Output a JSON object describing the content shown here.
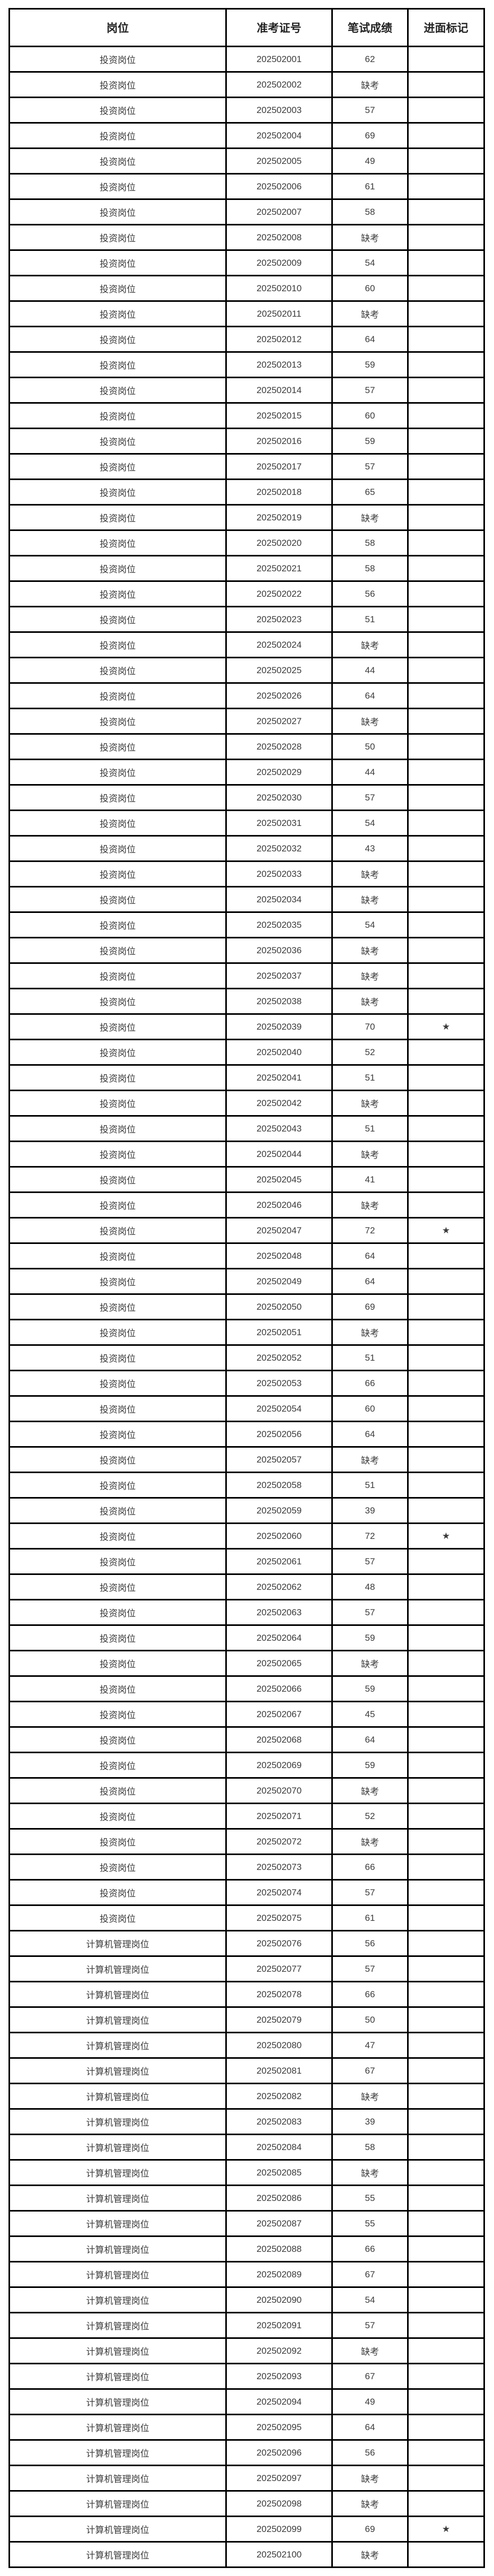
{
  "table": {
    "headers": {
      "post": "岗位",
      "exam_id": "准考证号",
      "written_score": "笔试成绩",
      "interview_mark": "进面标记"
    },
    "absent_label": "缺考",
    "star_symbol": "★",
    "post_labels": {
      "investment": "投资岗位",
      "computer_management": "计算机管理岗位"
    },
    "rows": [
      {
        "post": "投资岗位",
        "id": "202502001",
        "score": "62",
        "mark": ""
      },
      {
        "post": "投资岗位",
        "id": "202502002",
        "score": "缺考",
        "mark": ""
      },
      {
        "post": "投资岗位",
        "id": "202502003",
        "score": "57",
        "mark": ""
      },
      {
        "post": "投资岗位",
        "id": "202502004",
        "score": "69",
        "mark": ""
      },
      {
        "post": "投资岗位",
        "id": "202502005",
        "score": "49",
        "mark": ""
      },
      {
        "post": "投资岗位",
        "id": "202502006",
        "score": "61",
        "mark": ""
      },
      {
        "post": "投资岗位",
        "id": "202502007",
        "score": "58",
        "mark": ""
      },
      {
        "post": "投资岗位",
        "id": "202502008",
        "score": "缺考",
        "mark": ""
      },
      {
        "post": "投资岗位",
        "id": "202502009",
        "score": "54",
        "mark": ""
      },
      {
        "post": "投资岗位",
        "id": "202502010",
        "score": "60",
        "mark": ""
      },
      {
        "post": "投资岗位",
        "id": "202502011",
        "score": "缺考",
        "mark": ""
      },
      {
        "post": "投资岗位",
        "id": "202502012",
        "score": "64",
        "mark": ""
      },
      {
        "post": "投资岗位",
        "id": "202502013",
        "score": "59",
        "mark": ""
      },
      {
        "post": "投资岗位",
        "id": "202502014",
        "score": "57",
        "mark": ""
      },
      {
        "post": "投资岗位",
        "id": "202502015",
        "score": "60",
        "mark": ""
      },
      {
        "post": "投资岗位",
        "id": "202502016",
        "score": "59",
        "mark": ""
      },
      {
        "post": "投资岗位",
        "id": "202502017",
        "score": "57",
        "mark": ""
      },
      {
        "post": "投资岗位",
        "id": "202502018",
        "score": "65",
        "mark": ""
      },
      {
        "post": "投资岗位",
        "id": "202502019",
        "score": "缺考",
        "mark": ""
      },
      {
        "post": "投资岗位",
        "id": "202502020",
        "score": "58",
        "mark": ""
      },
      {
        "post": "投资岗位",
        "id": "202502021",
        "score": "58",
        "mark": ""
      },
      {
        "post": "投资岗位",
        "id": "202502022",
        "score": "56",
        "mark": ""
      },
      {
        "post": "投资岗位",
        "id": "202502023",
        "score": "51",
        "mark": ""
      },
      {
        "post": "投资岗位",
        "id": "202502024",
        "score": "缺考",
        "mark": ""
      },
      {
        "post": "投资岗位",
        "id": "202502025",
        "score": "44",
        "mark": ""
      },
      {
        "post": "投资岗位",
        "id": "202502026",
        "score": "64",
        "mark": ""
      },
      {
        "post": "投资岗位",
        "id": "202502027",
        "score": "缺考",
        "mark": ""
      },
      {
        "post": "投资岗位",
        "id": "202502028",
        "score": "50",
        "mark": ""
      },
      {
        "post": "投资岗位",
        "id": "202502029",
        "score": "44",
        "mark": ""
      },
      {
        "post": "投资岗位",
        "id": "202502030",
        "score": "57",
        "mark": ""
      },
      {
        "post": "投资岗位",
        "id": "202502031",
        "score": "54",
        "mark": ""
      },
      {
        "post": "投资岗位",
        "id": "202502032",
        "score": "43",
        "mark": ""
      },
      {
        "post": "投资岗位",
        "id": "202502033",
        "score": "缺考",
        "mark": ""
      },
      {
        "post": "投资岗位",
        "id": "202502034",
        "score": "缺考",
        "mark": ""
      },
      {
        "post": "投资岗位",
        "id": "202502035",
        "score": "54",
        "mark": ""
      },
      {
        "post": "投资岗位",
        "id": "202502036",
        "score": "缺考",
        "mark": ""
      },
      {
        "post": "投资岗位",
        "id": "202502037",
        "score": "缺考",
        "mark": ""
      },
      {
        "post": "投资岗位",
        "id": "202502038",
        "score": "缺考",
        "mark": ""
      },
      {
        "post": "投资岗位",
        "id": "202502039",
        "score": "70",
        "mark": "★"
      },
      {
        "post": "投资岗位",
        "id": "202502040",
        "score": "52",
        "mark": ""
      },
      {
        "post": "投资岗位",
        "id": "202502041",
        "score": "51",
        "mark": ""
      },
      {
        "post": "投资岗位",
        "id": "202502042",
        "score": "缺考",
        "mark": ""
      },
      {
        "post": "投资岗位",
        "id": "202502043",
        "score": "51",
        "mark": ""
      },
      {
        "post": "投资岗位",
        "id": "202502044",
        "score": "缺考",
        "mark": ""
      },
      {
        "post": "投资岗位",
        "id": "202502045",
        "score": "41",
        "mark": ""
      },
      {
        "post": "投资岗位",
        "id": "202502046",
        "score": "缺考",
        "mark": ""
      },
      {
        "post": "投资岗位",
        "id": "202502047",
        "score": "72",
        "mark": "★"
      },
      {
        "post": "投资岗位",
        "id": "202502048",
        "score": "64",
        "mark": ""
      },
      {
        "post": "投资岗位",
        "id": "202502049",
        "score": "64",
        "mark": ""
      },
      {
        "post": "投资岗位",
        "id": "202502050",
        "score": "69",
        "mark": ""
      },
      {
        "post": "投资岗位",
        "id": "202502051",
        "score": "缺考",
        "mark": ""
      },
      {
        "post": "投资岗位",
        "id": "202502052",
        "score": "51",
        "mark": ""
      },
      {
        "post": "投资岗位",
        "id": "202502053",
        "score": "66",
        "mark": ""
      },
      {
        "post": "投资岗位",
        "id": "202502054",
        "score": "60",
        "mark": ""
      },
      {
        "post": "投资岗位",
        "id": "202502056",
        "score": "64",
        "mark": ""
      },
      {
        "post": "投资岗位",
        "id": "202502057",
        "score": "缺考",
        "mark": ""
      },
      {
        "post": "投资岗位",
        "id": "202502058",
        "score": "51",
        "mark": ""
      },
      {
        "post": "投资岗位",
        "id": "202502059",
        "score": "39",
        "mark": ""
      },
      {
        "post": "投资岗位",
        "id": "202502060",
        "score": "72",
        "mark": "★"
      },
      {
        "post": "投资岗位",
        "id": "202502061",
        "score": "57",
        "mark": ""
      },
      {
        "post": "投资岗位",
        "id": "202502062",
        "score": "48",
        "mark": ""
      },
      {
        "post": "投资岗位",
        "id": "202502063",
        "score": "57",
        "mark": ""
      },
      {
        "post": "投资岗位",
        "id": "202502064",
        "score": "59",
        "mark": ""
      },
      {
        "post": "投资岗位",
        "id": "202502065",
        "score": "缺考",
        "mark": ""
      },
      {
        "post": "投资岗位",
        "id": "202502066",
        "score": "59",
        "mark": ""
      },
      {
        "post": "投资岗位",
        "id": "202502067",
        "score": "45",
        "mark": ""
      },
      {
        "post": "投资岗位",
        "id": "202502068",
        "score": "64",
        "mark": ""
      },
      {
        "post": "投资岗位",
        "id": "202502069",
        "score": "59",
        "mark": ""
      },
      {
        "post": "投资岗位",
        "id": "202502070",
        "score": "缺考",
        "mark": ""
      },
      {
        "post": "投资岗位",
        "id": "202502071",
        "score": "52",
        "mark": ""
      },
      {
        "post": "投资岗位",
        "id": "202502072",
        "score": "缺考",
        "mark": ""
      },
      {
        "post": "投资岗位",
        "id": "202502073",
        "score": "66",
        "mark": ""
      },
      {
        "post": "投资岗位",
        "id": "202502074",
        "score": "57",
        "mark": ""
      },
      {
        "post": "投资岗位",
        "id": "202502075",
        "score": "61",
        "mark": ""
      },
      {
        "post": "计算机管理岗位",
        "id": "202502076",
        "score": "56",
        "mark": ""
      },
      {
        "post": "计算机管理岗位",
        "id": "202502077",
        "score": "57",
        "mark": ""
      },
      {
        "post": "计算机管理岗位",
        "id": "202502078",
        "score": "66",
        "mark": ""
      },
      {
        "post": "计算机管理岗位",
        "id": "202502079",
        "score": "50",
        "mark": ""
      },
      {
        "post": "计算机管理岗位",
        "id": "202502080",
        "score": "47",
        "mark": ""
      },
      {
        "post": "计算机管理岗位",
        "id": "202502081",
        "score": "67",
        "mark": ""
      },
      {
        "post": "计算机管理岗位",
        "id": "202502082",
        "score": "缺考",
        "mark": ""
      },
      {
        "post": "计算机管理岗位",
        "id": "202502083",
        "score": "39",
        "mark": ""
      },
      {
        "post": "计算机管理岗位",
        "id": "202502084",
        "score": "58",
        "mark": ""
      },
      {
        "post": "计算机管理岗位",
        "id": "202502085",
        "score": "缺考",
        "mark": ""
      },
      {
        "post": "计算机管理岗位",
        "id": "202502086",
        "score": "55",
        "mark": ""
      },
      {
        "post": "计算机管理岗位",
        "id": "202502087",
        "score": "55",
        "mark": ""
      },
      {
        "post": "计算机管理岗位",
        "id": "202502088",
        "score": "66",
        "mark": ""
      },
      {
        "post": "计算机管理岗位",
        "id": "202502089",
        "score": "67",
        "mark": ""
      },
      {
        "post": "计算机管理岗位",
        "id": "202502090",
        "score": "54",
        "mark": ""
      },
      {
        "post": "计算机管理岗位",
        "id": "202502091",
        "score": "57",
        "mark": ""
      },
      {
        "post": "计算机管理岗位",
        "id": "202502092",
        "score": "缺考",
        "mark": ""
      },
      {
        "post": "计算机管理岗位",
        "id": "202502093",
        "score": "67",
        "mark": ""
      },
      {
        "post": "计算机管理岗位",
        "id": "202502094",
        "score": "49",
        "mark": ""
      },
      {
        "post": "计算机管理岗位",
        "id": "202502095",
        "score": "64",
        "mark": ""
      },
      {
        "post": "计算机管理岗位",
        "id": "202502096",
        "score": "56",
        "mark": ""
      },
      {
        "post": "计算机管理岗位",
        "id": "202502097",
        "score": "缺考",
        "mark": ""
      },
      {
        "post": "计算机管理岗位",
        "id": "202502098",
        "score": "缺考",
        "mark": ""
      },
      {
        "post": "计算机管理岗位",
        "id": "202502099",
        "score": "69",
        "mark": "★"
      },
      {
        "post": "计算机管理岗位",
        "id": "202502100",
        "score": "缺考",
        "mark": ""
      }
    ]
  },
  "colors": {
    "background": "#ffffff",
    "border": "#000000",
    "header_text": "#222222",
    "cell_text": "#3a3a3a"
  }
}
